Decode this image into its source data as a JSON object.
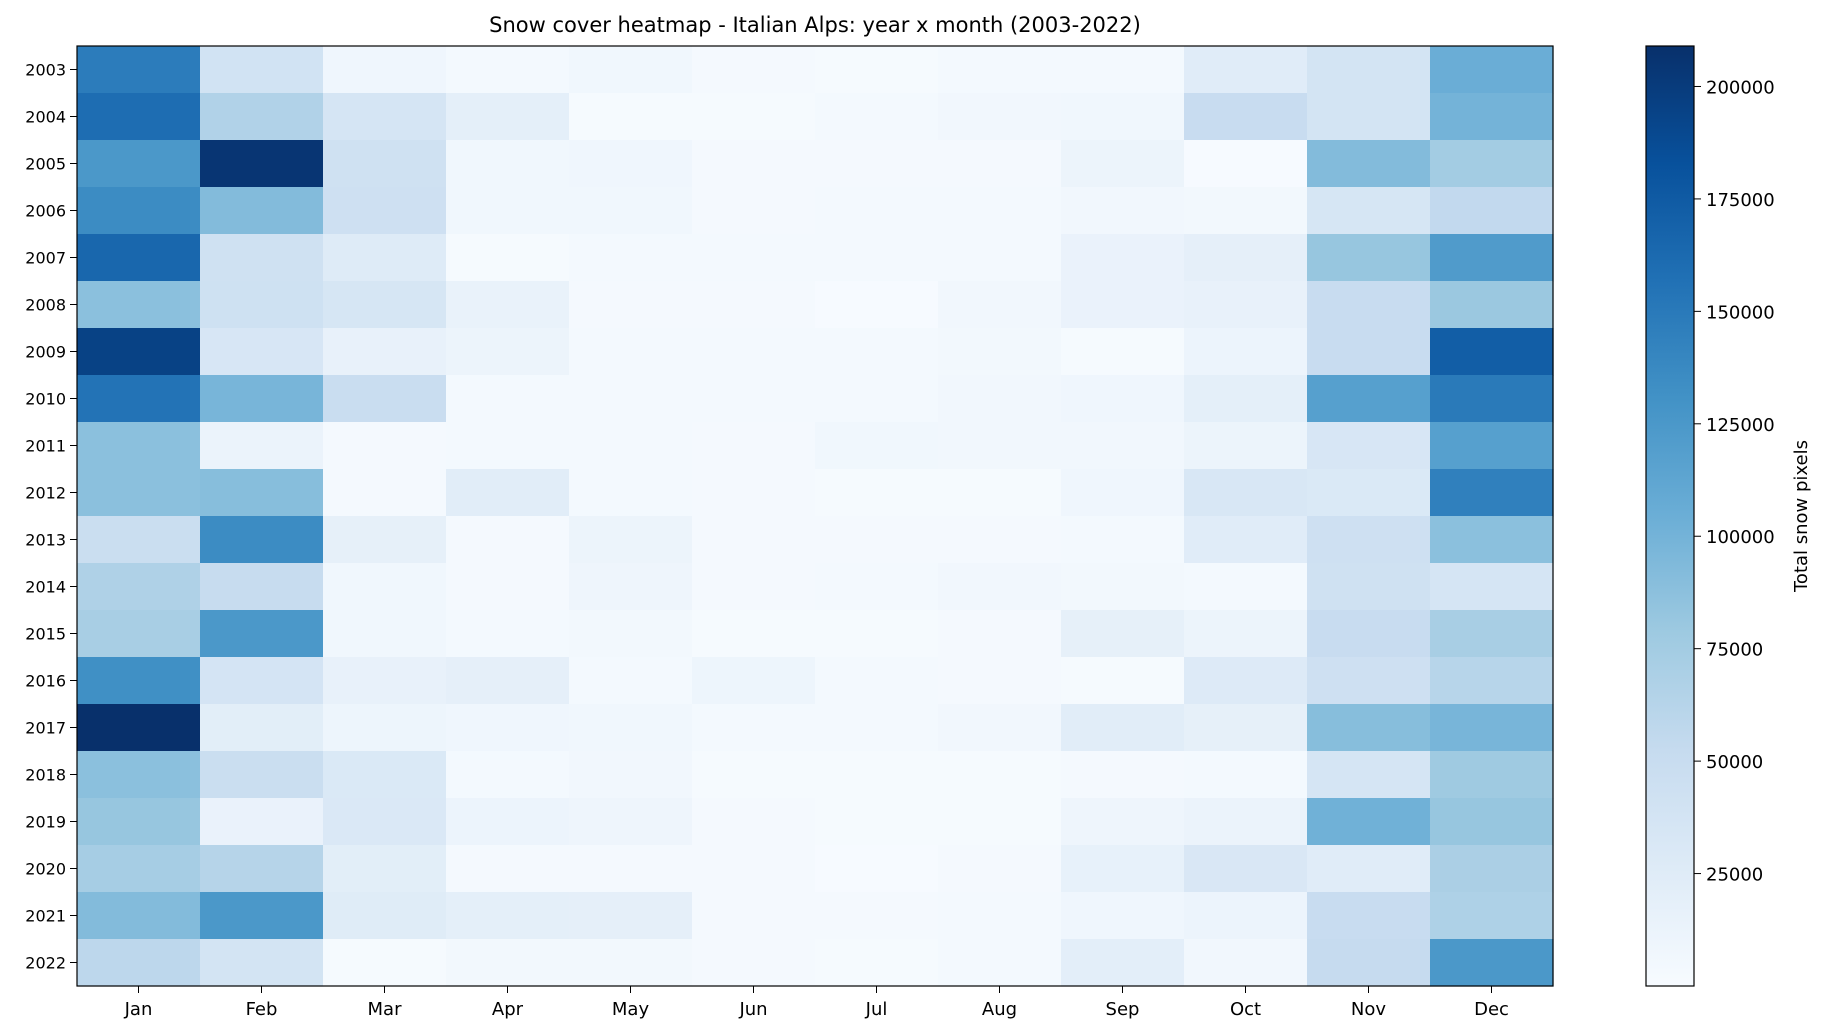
{
  "chart_data": {
    "type": "heatmap",
    "title": "Snow cover heatmap - Italian Alps: year x month (2003-2022)",
    "xlabel": "",
    "ylabel": "",
    "colorbar_label": "Total snow pixels",
    "colormap": "Blues",
    "vmin": 0,
    "vmax": 209000,
    "colorbar_ticks": [
      25000,
      50000,
      75000,
      100000,
      125000,
      150000,
      175000,
      200000
    ],
    "colorbar_tick_labels": [
      "25000",
      "50000",
      "75000",
      "100000",
      "125000",
      "150000",
      "175000",
      "200000"
    ],
    "months": [
      "Jan",
      "Feb",
      "Mar",
      "Apr",
      "May",
      "Jun",
      "Jul",
      "Aug",
      "Sep",
      "Oct",
      "Nov",
      "Dec"
    ],
    "years": [
      "2003",
      "2004",
      "2005",
      "2006",
      "2007",
      "2008",
      "2009",
      "2010",
      "2011",
      "2012",
      "2013",
      "2014",
      "2015",
      "2016",
      "2017",
      "2018",
      "2019",
      "2020",
      "2021",
      "2022"
    ],
    "values": [
      [
        148000,
        40000,
        8000,
        4000,
        7000,
        3000,
        2000,
        4000,
        4000,
        24000,
        38000,
        105000
      ],
      [
        160000,
        66000,
        36000,
        20000,
        2000,
        2000,
        4000,
        6000,
        7000,
        50000,
        38000,
        100000
      ],
      [
        125000,
        205000,
        42000,
        7000,
        8000,
        3000,
        3000,
        3000,
        12000,
        1000,
        92000,
        75000
      ],
      [
        135000,
        92000,
        44000,
        7000,
        7000,
        3000,
        4000,
        4000,
        6000,
        5000,
        35000,
        55000
      ],
      [
        165000,
        42000,
        26000,
        2000,
        4000,
        4000,
        4000,
        4000,
        14000,
        19000,
        82000,
        122000
      ],
      [
        88000,
        43000,
        35000,
        15000,
        3000,
        3000,
        1000,
        6000,
        14000,
        16000,
        50000,
        80000
      ],
      [
        195000,
        34000,
        16000,
        12000,
        4000,
        4000,
        4000,
        5000,
        2000,
        11000,
        50000,
        172000
      ],
      [
        155000,
        98000,
        49000,
        4000,
        4000,
        4000,
        4000,
        6000,
        8000,
        20000,
        118000,
        150000
      ],
      [
        88000,
        13000,
        3000,
        4000,
        4000,
        3000,
        7000,
        6000,
        6000,
        12000,
        34000,
        118000
      ],
      [
        88000,
        90000,
        3000,
        23000,
        4000,
        3000,
        2000,
        2000,
        8000,
        33000,
        30000,
        145000
      ],
      [
        48000,
        135000,
        18000,
        3000,
        12000,
        3000,
        3000,
        3000,
        4000,
        24000,
        44000,
        88000
      ],
      [
        67000,
        51000,
        7000,
        3000,
        9000,
        3000,
        4000,
        6000,
        5000,
        4000,
        42000,
        36000
      ],
      [
        72000,
        125000,
        7000,
        4000,
        5000,
        2000,
        2000,
        3000,
        18000,
        12000,
        50000,
        72000
      ],
      [
        132000,
        37000,
        16000,
        19000,
        4000,
        10000,
        4000,
        3000,
        2000,
        27000,
        44000,
        62000
      ],
      [
        209000,
        22000,
        10000,
        8000,
        7000,
        4000,
        4000,
        6000,
        23000,
        18000,
        90000,
        98000
      ],
      [
        88000,
        48000,
        30000,
        4000,
        6000,
        2000,
        2000,
        2000,
        3000,
        4000,
        36000,
        78000
      ],
      [
        82000,
        14000,
        31000,
        11000,
        9000,
        3000,
        2000,
        2000,
        9000,
        13000,
        102000,
        82000
      ],
      [
        73000,
        63000,
        22000,
        3000,
        3000,
        3000,
        1000,
        3000,
        17000,
        32000,
        24000,
        70000
      ],
      [
        92000,
        125000,
        25000,
        20000,
        19000,
        3000,
        3000,
        4000,
        8000,
        11000,
        50000,
        68000
      ],
      [
        58000,
        38000,
        2000,
        5000,
        5000,
        3000,
        2000,
        4000,
        21000,
        6000,
        52000,
        125000
      ]
    ]
  }
}
